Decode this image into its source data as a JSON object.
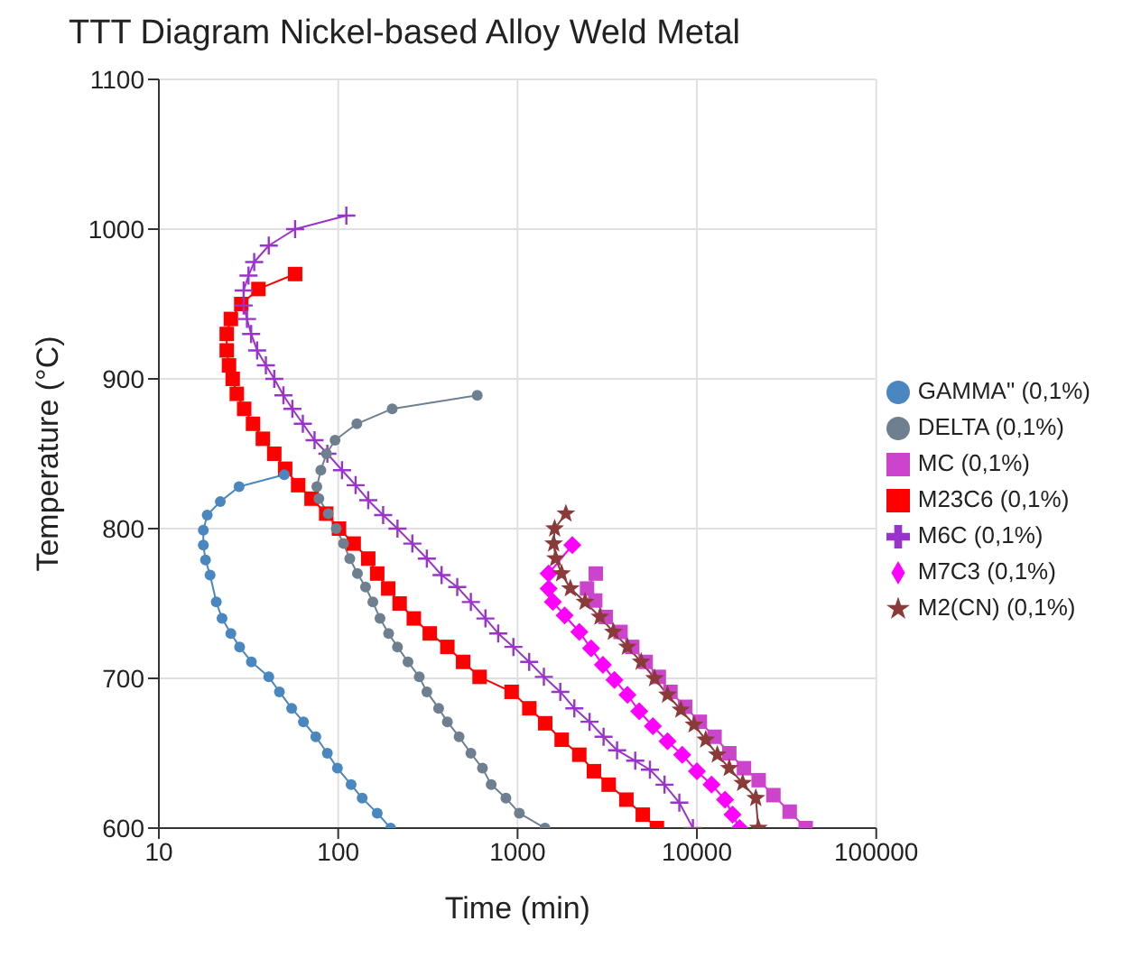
{
  "chart_data": {
    "type": "line",
    "title": "TTT Diagram Nickel-based Alloy Weld Metal",
    "xlabel": "Time (min)",
    "ylabel": "Temperature (°C)",
    "log": "x",
    "grid": true,
    "legend": "right",
    "xlim": [
      10,
      100000
    ],
    "xticks": [
      10,
      100,
      1000,
      10000,
      100000
    ],
    "ylim": [
      600,
      1100
    ],
    "yticks": [
      600,
      700,
      800,
      900,
      1000,
      1100
    ],
    "series": [
      {
        "name": "GAMMA\" (0,1%)",
        "color": "#4a86c0",
        "marker": "circle",
        "x": [
          50,
          28,
          22,
          18.6,
          17.7,
          17.7,
          18.2,
          19.3,
          20.9,
          22.5,
          25.2,
          28.2,
          32.8,
          41,
          47,
          55,
          64,
          75,
          87,
          99,
          118,
          136,
          165,
          196
        ],
        "values": [
          836,
          828,
          818,
          809,
          799,
          789,
          779,
          769,
          751,
          740,
          730,
          721,
          711,
          701,
          691,
          680,
          671,
          661,
          650,
          640,
          629,
          620,
          610,
          600
        ]
      },
      {
        "name": "DELTA (0,1%)",
        "color": "#6e7f90",
        "marker": "circle",
        "x": [
          596,
          200,
          127,
          96,
          86,
          80,
          76,
          78,
          88,
          97.5,
          107,
          116,
          128,
          142,
          156,
          171,
          191,
          214,
          245,
          283,
          312,
          363,
          406,
          472,
          549,
          637,
          713,
          861,
          1023,
          1422
        ],
        "values": [
          889,
          880,
          870,
          859,
          850,
          839,
          828,
          820,
          810,
          800,
          790,
          780,
          770,
          761,
          751,
          740,
          730,
          721,
          711,
          701,
          691,
          680,
          671,
          661,
          650,
          640,
          629,
          620,
          610,
          600
        ]
      },
      {
        "name": "MC (0,1%)",
        "color": "#cc44cc",
        "marker": "square",
        "x": [
          2730,
          2440,
          2710,
          3100,
          3750,
          4360,
          5180,
          6130,
          7120,
          8600,
          10380,
          12540,
          15150,
          18300,
          22100,
          26700,
          32900,
          40400
        ],
        "values": [
          770,
          760,
          752,
          741,
          731,
          721,
          711,
          701,
          691,
          681,
          671,
          661,
          650,
          640,
          632,
          622,
          611,
          600
        ]
      },
      {
        "name": "M23C6 (0,1%)",
        "color": "#ff0000",
        "marker": "square",
        "x": [
          57.5,
          35.9,
          28.8,
          25.2,
          23.9,
          23.9,
          24.6,
          25.8,
          27.2,
          29.9,
          33.5,
          38,
          44,
          50.6,
          59.8,
          71,
          85.7,
          101,
          122,
          147,
          165,
          190,
          220,
          264,
          324,
          406,
          497,
          614,
          927,
          1163,
          1426,
          1762,
          2209,
          2667,
          3221,
          4044,
          4992,
          5983
        ],
        "values": [
          970,
          960,
          950,
          940,
          930,
          919,
          909,
          900,
          890,
          880,
          870,
          860,
          850,
          840,
          829,
          820,
          810,
          800,
          790,
          780,
          770,
          760,
          750,
          740,
          730,
          721,
          711,
          701,
          691,
          680,
          670,
          659,
          649,
          638,
          629,
          619,
          609,
          600
        ]
      },
      {
        "name": "M6C (0,1%)",
        "color": "#9933cc",
        "marker": "cross",
        "x": [
          111,
          57.5,
          41,
          34,
          31.6,
          29.7,
          29.7,
          31,
          32.7,
          35.3,
          39.5,
          44,
          49.5,
          55.5,
          63.5,
          73.8,
          87,
          105,
          125,
          147,
          178,
          214,
          259,
          312,
          377,
          461,
          549,
          662,
          780,
          948,
          1161,
          1402,
          1731,
          2073,
          2520,
          3017,
          3588,
          4530,
          5470,
          6600,
          7980,
          9500
        ],
        "values": [
          1009,
          1000,
          989,
          978,
          969,
          959,
          949,
          940,
          930,
          919,
          909,
          900,
          889,
          880,
          870,
          859,
          850,
          839,
          829,
          819,
          809,
          800,
          790,
          780,
          769,
          761,
          751,
          740,
          730,
          721,
          711,
          701,
          691,
          680,
          671,
          661,
          652,
          645,
          639,
          629,
          617,
          600
        ]
      },
      {
        "name": "M7C3 (0,1%)",
        "color": "#ff00ff",
        "marker": "diamond",
        "x": [
          2020,
          1490,
          1490,
          1574,
          1830,
          2210,
          2570,
          2990,
          3470,
          4100,
          4770,
          5680,
          6860,
          8280,
          10000,
          12070,
          14350,
          15800,
          17300
        ],
        "values": [
          789,
          770,
          760,
          751,
          742,
          731,
          720,
          709,
          699,
          689,
          678,
          668,
          658,
          649,
          638,
          629,
          619,
          609,
          600
        ]
      },
      {
        "name": "M2(CN) (0,1%)",
        "color": "#8b3a3a",
        "marker": "star",
        "x": [
          1860,
          1610,
          1590,
          1630,
          1760,
          1970,
          2380,
          2880,
          3420,
          4100,
          4890,
          5810,
          6860,
          8140,
          9640,
          11200,
          13000,
          15150,
          18000,
          21300,
          22000
        ],
        "values": [
          810,
          800,
          790,
          780,
          770,
          760,
          751,
          741,
          731,
          721,
          711,
          700,
          689,
          679,
          669,
          659,
          649,
          640,
          630,
          620,
          600
        ]
      }
    ]
  }
}
